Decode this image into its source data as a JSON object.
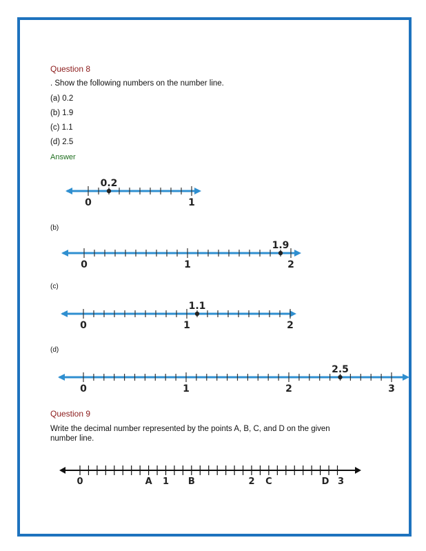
{
  "q8": {
    "title": "Question 8",
    "prompt": ". Show the following numbers on the number line.",
    "items": [
      "(a) 0.2",
      "(b) 1.9",
      "(c) 1.1",
      "(d) 2.5"
    ],
    "answer_label": "Answer",
    "sub_b": "(b)",
    "sub_c": "(c)",
    "sub_d": "(d)"
  },
  "q9": {
    "title": "Question 9",
    "prompt": "Write the decimal number represented by the points A, B, C, and D on the given number line."
  },
  "lines": [
    {
      "labels": [
        "0",
        "1"
      ],
      "point": "0.2",
      "point_value": 0.2,
      "max": 1
    },
    {
      "labels": [
        "0",
        "1",
        "2"
      ],
      "point": "1.9",
      "point_value": 1.9,
      "max": 2
    },
    {
      "labels": [
        "0",
        "1",
        "2"
      ],
      "point": "1.1",
      "point_value": 1.1,
      "max": 2
    },
    {
      "labels": [
        "0",
        "1",
        "2",
        "3"
      ],
      "point": "2.5",
      "point_value": 2.5,
      "max": 3
    }
  ],
  "q9_line": {
    "labels": [
      "0",
      "A",
      "1",
      "B",
      "2",
      "C",
      "D",
      "3"
    ],
    "label_values": [
      0,
      0.8,
      1,
      1.3,
      2,
      2.2,
      2.9,
      3.0
    ],
    "max": 3
  },
  "colors": {
    "frame": "#1e73be",
    "line": "#2f8fd0",
    "question": "#8b1a1a",
    "answer": "#1f6f1f"
  }
}
